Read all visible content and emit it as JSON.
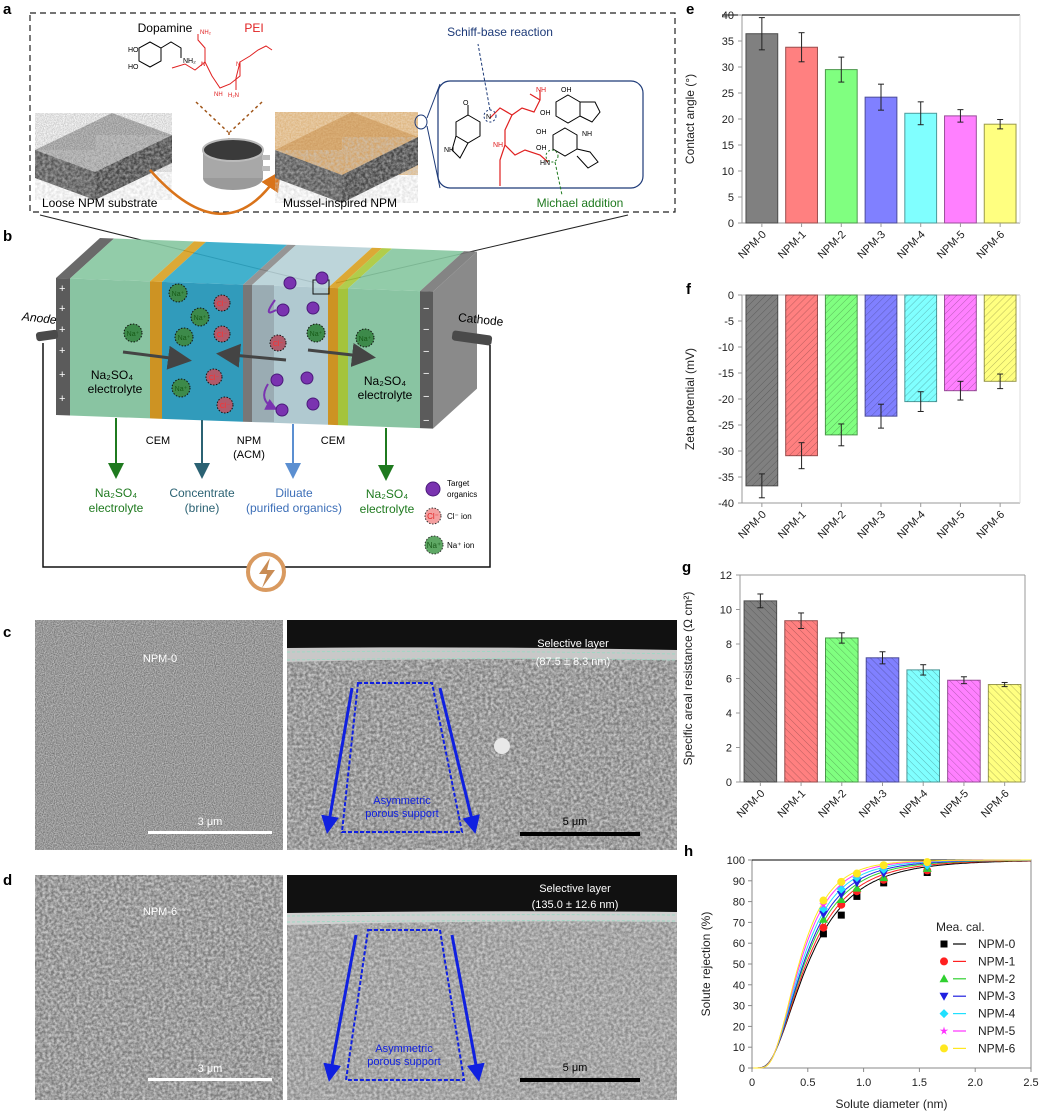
{
  "panel_letters": {
    "a": "a",
    "b": "b",
    "c": "c",
    "d": "d",
    "e": "e",
    "f": "f",
    "g": "g",
    "h": "h"
  },
  "panel_a": {
    "dopamine_label": "Dopamine",
    "pei_label": "PEI",
    "schiff_label": "Schiff-base reaction",
    "michael_label": "Michael addition",
    "substrate_label": "Loose NPM substrate",
    "mussel_label": "Mussel-inspired NPM",
    "chem": {
      "ho": "HO",
      "nh2": "NH₂",
      "n": "N",
      "nh": "NH",
      "h2n": "H₂N",
      "oh": "OH",
      "o": "O",
      "hn": "HN"
    }
  },
  "panel_b": {
    "anode": "Anode",
    "cathode": "Cathode",
    "electrolyte_left": "Na₂SO₄",
    "electrolyte_left_2": "electrolyte",
    "electrolyte_right": "Na₂SO₄",
    "electrolyte_right_2": "electrolyte",
    "cem_left": "CEM",
    "cem_right": "CEM",
    "npm": "NPM",
    "npm_sub": "(ACM)",
    "out_electrolyte_left": "Na₂SO₄",
    "out_electrolyte_left_2": "electrolyte",
    "concentrate": "Concentrate",
    "concentrate_sub": "(brine)",
    "diluate": "Diluate",
    "diluate_sub": "(purified organics)",
    "out_electrolyte_right": "Na₂SO₄",
    "out_electrolyte_right_2": "electrolyte",
    "ion_na": "Na⁺",
    "ion_cl": "Cl⁻",
    "plus": "+",
    "minus": "−",
    "legend": {
      "organics_1": "Target",
      "organics_2": "organics",
      "cl": "Cl⁻ ion",
      "na": "Na⁺ ion",
      "cl_icon": "Cl⁻",
      "na_icon": "Na⁺"
    }
  },
  "panel_c": {
    "sample": "NPM-0",
    "scale_left": "3 μm",
    "layer_1": "Selective layer",
    "layer_2": "(87.5 ± 8.3 nm)",
    "support_1": "Asymmetric",
    "support_2": "porous support",
    "scale_right": "5 μm"
  },
  "panel_d": {
    "sample": "NPM-6",
    "scale_left": "3 μm",
    "layer_1": "Selective layer",
    "layer_2": "(135.0 ± 12.6 nm)",
    "support_1": "Asymmetric",
    "support_2": "porous support",
    "scale_right": "5 μm"
  },
  "colors": [
    "#808080",
    "#ff8080",
    "#80ff80",
    "#8080ff",
    "#80ffff",
    "#ff80ff",
    "#ffff80"
  ],
  "chart_data": [
    {
      "id": "e",
      "type": "bar",
      "ylabel": "Contact angle (°)",
      "categories": [
        "NPM-0",
        "NPM-1",
        "NPM-2",
        "NPM-3",
        "NPM-4",
        "NPM-5",
        "NPM-6"
      ],
      "values": [
        36.4,
        33.8,
        29.5,
        24.2,
        21.1,
        20.6,
        19.0
      ],
      "errors": [
        3.1,
        2.8,
        2.4,
        2.5,
        2.2,
        1.2,
        0.9
      ],
      "ylim": [
        0,
        40
      ],
      "yticks": [
        "0",
        "5",
        "10",
        "15",
        "20",
        "25",
        "30",
        "35",
        "40"
      ],
      "pattern": "none"
    },
    {
      "id": "f",
      "type": "bar",
      "ylabel": "Zeta potential (mV)",
      "categories": [
        "NPM-0",
        "NPM-1",
        "NPM-2",
        "NPM-3",
        "NPM-4",
        "NPM-5",
        "NPM-6"
      ],
      "values": [
        -36.7,
        -30.9,
        -26.9,
        -23.3,
        -20.5,
        -18.4,
        -16.6
      ],
      "errors": [
        2.3,
        2.5,
        2.1,
        2.3,
        1.9,
        1.8,
        1.4
      ],
      "ylim": [
        -40,
        0
      ],
      "yticks": [
        "-40",
        "-35",
        "-30",
        "-25",
        "-20",
        "-15",
        "-10",
        "-5",
        "0"
      ],
      "pattern": "forward-hatch"
    },
    {
      "id": "g",
      "type": "bar",
      "ylabel": "Specific areal resistance (Ω cm²)",
      "categories": [
        "NPM-0",
        "NPM-1",
        "NPM-2",
        "NPM-3",
        "NPM-4",
        "NPM-5",
        "NPM-6"
      ],
      "values": [
        10.5,
        9.35,
        8.35,
        7.2,
        6.5,
        5.9,
        5.65
      ],
      "errors": [
        0.4,
        0.45,
        0.3,
        0.35,
        0.3,
        0.2,
        0.12
      ],
      "ylim": [
        0,
        12
      ],
      "yticks": [
        "0",
        "2",
        "4",
        "6",
        "8",
        "10",
        "12"
      ],
      "pattern": "back-hatch"
    },
    {
      "id": "h",
      "type": "line",
      "xlabel": "Solute diameter (nm)",
      "ylabel": "Solute rejection (%)",
      "xlim": [
        0,
        2.5
      ],
      "ylim": [
        0,
        100
      ],
      "xticks": [
        "0",
        "0.5",
        "1.0",
        "1.5",
        "2.0",
        "2.5"
      ],
      "yticks": [
        "0",
        "10",
        "20",
        "30",
        "40",
        "50",
        "60",
        "70",
        "80",
        "90",
        "100"
      ],
      "legend_title": "Mea. cal.",
      "legend_position": "center-right",
      "x": [
        0.64,
        0.8,
        0.94,
        1.18,
        1.57
      ],
      "series": [
        {
          "name": "NPM-0",
          "color": "#000000",
          "marker": "square",
          "values": [
            64.5,
            73.5,
            82.5,
            89,
            94
          ],
          "fit": {
            "mu": 0.5,
            "sigma": 0.62
          }
        },
        {
          "name": "NPM-1",
          "color": "#ff2020",
          "marker": "circle",
          "values": [
            67.5,
            78.5,
            85,
            90.5,
            95
          ],
          "fit": {
            "mu": 0.485,
            "sigma": 0.6
          }
        },
        {
          "name": "NPM-2",
          "color": "#30d030",
          "marker": "triangle-up",
          "values": [
            71.5,
            81,
            86.5,
            91.5,
            96
          ],
          "fit": {
            "mu": 0.47,
            "sigma": 0.58
          }
        },
        {
          "name": "NPM-3",
          "color": "#2020e0",
          "marker": "triangle-down",
          "values": [
            74,
            83.5,
            89,
            93.5,
            97
          ],
          "fit": {
            "mu": 0.46,
            "sigma": 0.56
          }
        },
        {
          "name": "NPM-4",
          "color": "#20e0ff",
          "marker": "diamond",
          "values": [
            76.5,
            86,
            91.5,
            95.5,
            97.5
          ],
          "fit": {
            "mu": 0.445,
            "sigma": 0.54
          }
        },
        {
          "name": "NPM-5",
          "color": "#ff30ff",
          "marker": "star",
          "values": [
            78.5,
            88.5,
            93,
            97,
            98.5
          ],
          "fit": {
            "mu": 0.43,
            "sigma": 0.52
          }
        },
        {
          "name": "NPM-6",
          "color": "#ffe820",
          "marker": "circle",
          "values": [
            80.5,
            89.5,
            93.5,
            97.5,
            99
          ],
          "fit": {
            "mu": 0.42,
            "sigma": 0.5
          }
        }
      ]
    }
  ]
}
